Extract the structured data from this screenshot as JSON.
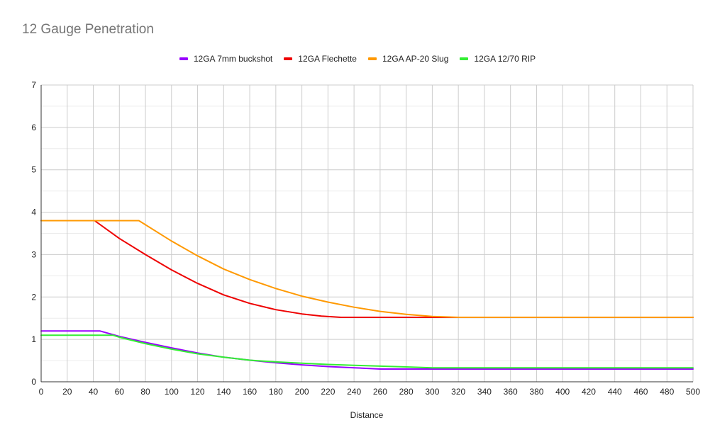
{
  "chart_data": {
    "type": "line",
    "title": "12 Gauge Penetration",
    "xlabel": "Distance",
    "ylabel": "",
    "xlim": [
      0,
      500
    ],
    "ylim": [
      0,
      7
    ],
    "xticks": [
      0,
      20,
      40,
      60,
      80,
      100,
      120,
      140,
      160,
      180,
      200,
      220,
      240,
      260,
      280,
      300,
      320,
      340,
      360,
      380,
      400,
      420,
      440,
      460,
      480,
      500
    ],
    "yticks": [
      0,
      1,
      2,
      3,
      4,
      5,
      6,
      7
    ],
    "grid": true,
    "legend_position": "top",
    "series": [
      {
        "name": "12GA 7mm buckshot",
        "color": "#9900ff",
        "x": [
          0,
          45,
          60,
          80,
          100,
          120,
          140,
          160,
          180,
          200,
          220,
          240,
          260,
          300,
          350,
          400,
          450,
          500
        ],
        "y": [
          1.2,
          1.2,
          1.07,
          0.93,
          0.8,
          0.68,
          0.58,
          0.51,
          0.45,
          0.4,
          0.36,
          0.33,
          0.3,
          0.3,
          0.3,
          0.3,
          0.3,
          0.3
        ]
      },
      {
        "name": "12GA Flechette",
        "color": "#ee0000",
        "x": [
          0,
          41,
          60,
          80,
          100,
          120,
          140,
          160,
          180,
          200,
          215,
          230,
          260,
          300,
          350,
          400,
          450,
          500
        ],
        "y": [
          3.8,
          3.8,
          3.38,
          3.0,
          2.64,
          2.32,
          2.05,
          1.85,
          1.7,
          1.6,
          1.55,
          1.52,
          1.52,
          1.52,
          1.52,
          1.52,
          1.52,
          1.52
        ]
      },
      {
        "name": "12GA AP-20 Slug",
        "color": "#ff9900",
        "x": [
          0,
          75,
          100,
          120,
          140,
          160,
          180,
          200,
          220,
          240,
          260,
          280,
          300,
          320,
          350,
          400,
          450,
          500
        ],
        "y": [
          3.8,
          3.8,
          3.32,
          2.97,
          2.66,
          2.41,
          2.2,
          2.02,
          1.88,
          1.76,
          1.66,
          1.59,
          1.54,
          1.52,
          1.52,
          1.52,
          1.52,
          1.52
        ]
      },
      {
        "name": "12GA 12/70 RIP",
        "color": "#33ee33",
        "x": [
          0,
          55,
          60,
          80,
          100,
          120,
          140,
          160,
          180,
          200,
          220,
          240,
          260,
          280,
          300,
          350,
          400,
          450,
          500
        ],
        "y": [
          1.1,
          1.1,
          1.05,
          0.9,
          0.77,
          0.66,
          0.58,
          0.51,
          0.47,
          0.44,
          0.41,
          0.39,
          0.37,
          0.35,
          0.33,
          0.33,
          0.33,
          0.33,
          0.33
        ]
      }
    ]
  }
}
